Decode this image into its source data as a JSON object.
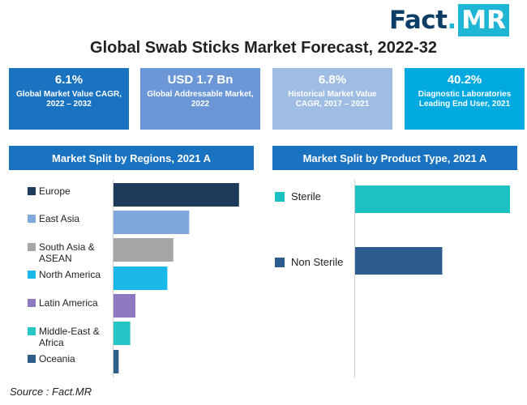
{
  "brand": {
    "logo_text": "Fact",
    "logo_dot": ".",
    "logo_suffix": "MR"
  },
  "title": "Global Swab Sticks Market Forecast, 2022-32",
  "kpis": [
    {
      "value": "6.1%",
      "label": "Global Market Value CAGR, 2022 – 2032",
      "color": "#1a73c0"
    },
    {
      "value": "USD 1.7 Bn",
      "label": "Global Addressable Market, 2022",
      "color": "#6b97d6"
    },
    {
      "value": "6.8%",
      "label": "Historical Market Value CAGR, 2017 – 2021",
      "color": "#9fbde3"
    },
    {
      "value": "40.2%",
      "label": "Diagnostic Laboratories Leading End User, 2021",
      "color": "#00a9e0"
    }
  ],
  "source": "Source : Fact.MR",
  "chart_data": [
    {
      "type": "bar",
      "orientation": "horizontal",
      "title": "Market Split by Regions, 2021 A",
      "categories": [
        "Europe",
        "East Asia",
        "South Asia & ASEAN",
        "North America",
        "Latin America",
        "Middle-East & Africa",
        "Oceania"
      ],
      "values": [
        31.5,
        19.0,
        15.0,
        13.5,
        5.5,
        4.2,
        1.3
      ],
      "colors": [
        "#1f3b5c",
        "#7fa8dc",
        "#a6a6a6",
        "#1bb8ea",
        "#8e79c1",
        "#26c6c6",
        "#2d5f8a"
      ],
      "xlim": [
        0,
        35
      ],
      "grid": false,
      "legend": "left"
    },
    {
      "type": "bar",
      "orientation": "horizontal",
      "title": "Market Split by Product Type, 2021 A",
      "categories": [
        "Sterile",
        "Non Sterile"
      ],
      "values": [
        64,
        36
      ],
      "colors": [
        "#1cc1c1",
        "#2d5d8f"
      ],
      "xlim": [
        0,
        65
      ],
      "grid": false,
      "legend": "left"
    }
  ]
}
